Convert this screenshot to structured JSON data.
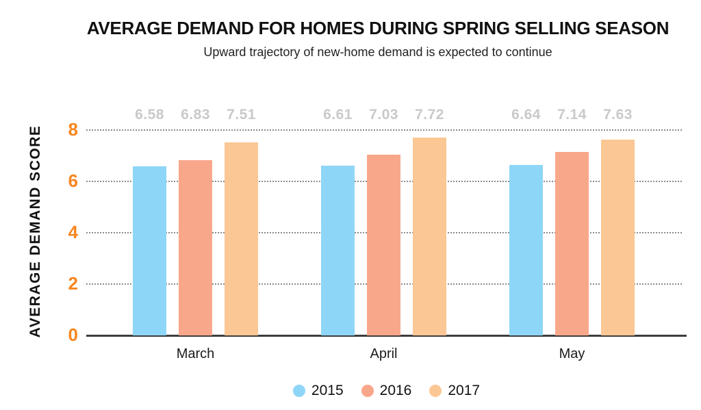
{
  "chart": {
    "title": "AVERAGE DEMAND FOR HOMES DURING SPRING SELLING SEASON",
    "subtitle": "Upward trajectory of new-home demand is expected to continue",
    "y_axis_label": "AVERAGE DEMAND SCORE"
  },
  "chart_data": {
    "type": "bar",
    "title": "AVERAGE DEMAND FOR HOMES DURING SPRING SELLING SEASON",
    "subtitle": "Upward trajectory of new-home demand is expected to continue",
    "xlabel": "",
    "ylabel": "AVERAGE DEMAND SCORE",
    "categories": [
      "March",
      "April",
      "May"
    ],
    "series": [
      {
        "name": "2015",
        "color": "#8ED6F7",
        "values": [
          6.58,
          6.61,
          6.64
        ]
      },
      {
        "name": "2016",
        "color": "#F9A78B",
        "values": [
          6.83,
          7.03,
          7.14
        ]
      },
      {
        "name": "2017",
        "color": "#FBC794",
        "values": [
          7.51,
          7.72,
          7.63
        ]
      }
    ],
    "value_labels": [
      [
        "6.58",
        "6.83",
        "7.51"
      ],
      [
        "6.61",
        "7.03",
        "7.72"
      ],
      [
        "6.64",
        "7.14",
        "7.63"
      ]
    ],
    "ylim": [
      0,
      8
    ],
    "yticks": [
      0,
      2,
      4,
      6,
      8
    ],
    "grid": "horizontal-dotted",
    "legend_position": "bottom",
    "legend_entries": [
      "2015",
      "2016",
      "2017"
    ]
  },
  "style_colors": {
    "y_tick_label": "#F6861F",
    "value_label": "#C9C9C9",
    "gridline": "#8A8A8A",
    "axis_line": "#3D3D3D"
  }
}
